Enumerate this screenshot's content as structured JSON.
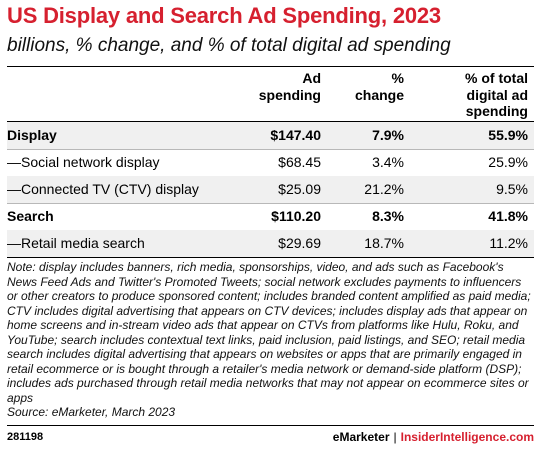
{
  "chart_data": {
    "type": "table",
    "title": "US Display and Search Ad Spending, 2023",
    "subtitle": "billions, % change, and % of total digital ad spending",
    "columns": [
      "Ad spending",
      "% change",
      "% of total digital ad spending"
    ],
    "rows": [
      {
        "label": "Display",
        "ad_spending": "$147.40",
        "pct_change": "7.9%",
        "pct_total": "55.9%",
        "bold": true
      },
      {
        "label": "—Social network display",
        "ad_spending": "$68.45",
        "pct_change": "3.4%",
        "pct_total": "25.9%",
        "bold": false
      },
      {
        "label": "—Connected TV (CTV) display",
        "ad_spending": "$25.09",
        "pct_change": "21.2%",
        "pct_total": "9.5%",
        "bold": false
      },
      {
        "label": "Search",
        "ad_spending": "$110.20",
        "pct_change": "8.3%",
        "pct_total": "41.8%",
        "bold": true
      },
      {
        "label": "—Retail media search",
        "ad_spending": "$29.69",
        "pct_change": "18.7%",
        "pct_total": "11.2%",
        "bold": false
      }
    ]
  },
  "header": {
    "col1": [
      "Ad",
      "spending"
    ],
    "col2": [
      "%",
      "change"
    ],
    "col3": [
      "% of total",
      "digital ad",
      "spending"
    ]
  },
  "note": "Note: display includes banners, rich media, sponsorships, video, and ads such as Facebook's News Feed Ads and Twitter's Promoted Tweets; social network excludes payments to influencers or other creators to produce sponsored content; includes branded content amplified as paid media; CTV includes digital advertising that appears on CTV devices; includes display ads that appear on home screens and in-stream video ads that appear on CTVs from platforms like Hulu, Roku, and YouTube; search includes contextual text links, paid inclusion, paid listings, and SEO; retail media search includes digital advertising that appears on websites or apps that are primarily engaged in retail ecommerce or is bought through a retailer's media network or demand-side platform (DSP); includes ads purchased through retail media networks that may not appear on ecommerce sites or apps",
  "source": "Source: eMarketer, March 2023",
  "footer": {
    "chart_id": "281198",
    "brand": "eMarketer",
    "separator": "|",
    "site": "InsiderIntelligence.com"
  },
  "colors": {
    "accent": "#d6202f",
    "row_shade": "#f0f0f0"
  }
}
